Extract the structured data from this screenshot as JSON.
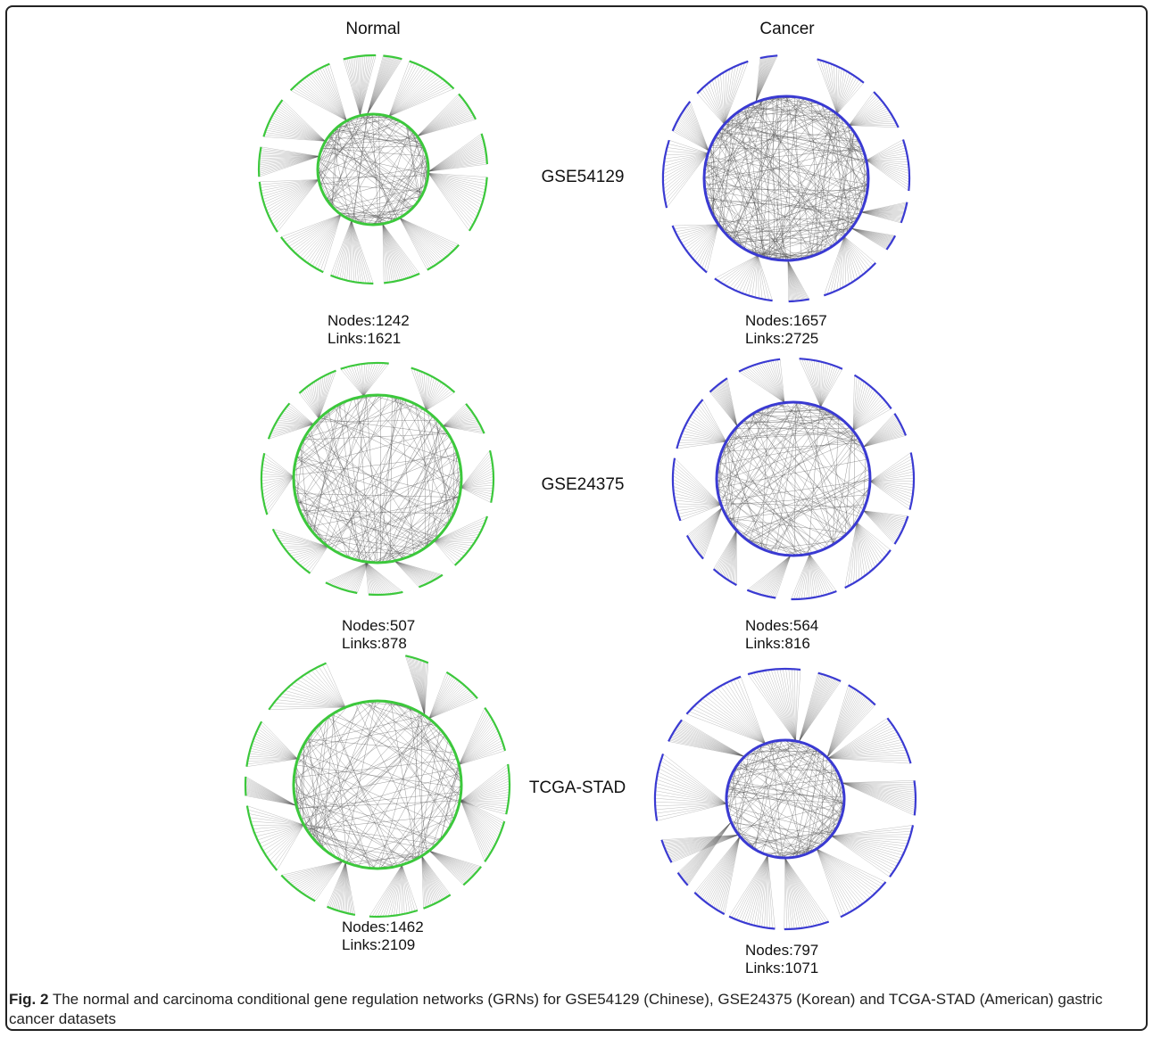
{
  "columns": [
    "Normal",
    "Cancer"
  ],
  "datasets": [
    {
      "name": "GSE54129",
      "normal": {
        "nodes_label": "Nodes:1242",
        "links_label": "Links:1621"
      },
      "cancer": {
        "nodes_label": "Nodes:1657",
        "links_label": "Links:2725"
      }
    },
    {
      "name": "GSE24375",
      "normal": {
        "nodes_label": "Nodes:507",
        "links_label": "Links:878"
      },
      "cancer": {
        "nodes_label": "Nodes:564",
        "links_label": "Links:816"
      }
    },
    {
      "name": "TCGA-STAD",
      "normal": {
        "nodes_label": "Nodes:1462",
        "links_label": "Links:2109"
      },
      "cancer": {
        "nodes_label": "Nodes:797",
        "links_label": "Links:1071"
      }
    }
  ],
  "colors": {
    "normal": "#3cc83c",
    "cancer": "#3a3ad2",
    "edge": "#555555"
  },
  "caption": {
    "label": "Fig. 2",
    "text": " The normal and carcinoma conditional gene regulation networks (GRNs) for GSE54129 (Chinese), GSE24375 (Korean) and TCGA-STAD (American) gastric cancer datasets"
  }
}
